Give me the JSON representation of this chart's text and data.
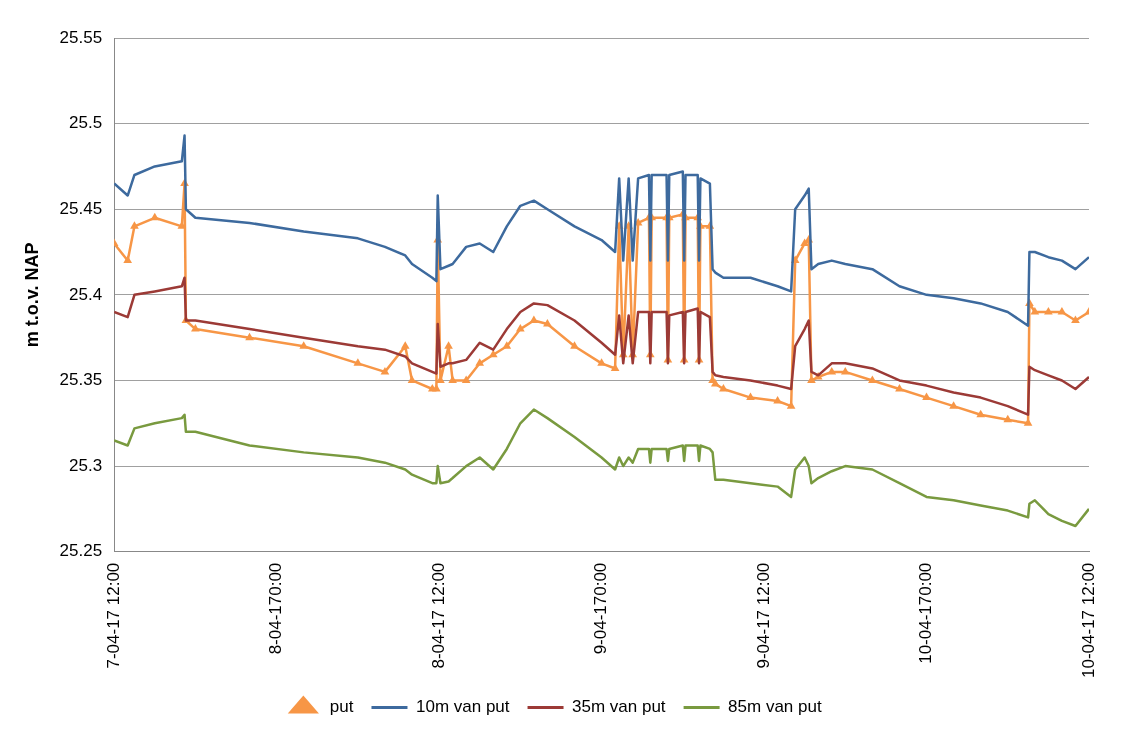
{
  "chart_data": {
    "type": "line",
    "ylabel": "m t.o.v. NAP",
    "x": [
      "--04-07T12:00",
      "--04-07T13:00",
      "--04-07T13:30",
      "--04-07T15:00",
      "--04-07T17:00",
      "--04-07T17:12",
      "--04-07T17:18",
      "--04-07T18:00",
      "--04-07T22:00",
      "--04-08T02:00",
      "--04-08T06:00",
      "--04-08T08:00",
      "--04-08T09:30",
      "--04-08T10:00",
      "--04-08T11:30",
      "--04-08T11:48",
      "--04-08T11:54",
      "--04-08T12:06",
      "--04-08T12:42",
      "--04-08T13:00",
      "--04-08T14:00",
      "--04-08T15:00",
      "--04-08T16:00",
      "--04-08T17:00",
      "--04-08T18:00",
      "--04-08T19:00",
      "--04-08T20:00",
      "--04-08T22:00",
      "--04-09T00:00",
      "--04-09T01:00",
      "--04-09T01:18",
      "--04-09T01:36",
      "--04-09T02:00",
      "--04-09T02:18",
      "--04-09T02:42",
      "--04-09T03:30",
      "--04-09T03:36",
      "--04-09T03:42",
      "--04-09T04:48",
      "--04-09T04:54",
      "--04-09T05:00",
      "--04-09T06:00",
      "--04-09T06:06",
      "--04-09T06:12",
      "--04-09T07:06",
      "--04-09T07:12",
      "--04-09T07:18",
      "--04-09T08:00",
      "--04-09T08:12",
      "--04-09T08:24",
      "--04-09T09:00",
      "--04-09T11:00",
      "--04-09T13:00",
      "--04-09T14:00",
      "--04-09T14:18",
      "--04-09T15:00",
      "--04-09T15:18",
      "--04-09T15:30",
      "--04-09T16:00",
      "--04-09T17:00",
      "--04-09T18:00",
      "--04-09T20:00",
      "--04-09T22:00",
      "--04-10T00:00",
      "--04-10T02:00",
      "--04-10T04:00",
      "--04-10T06:00",
      "--04-10T07:30",
      "--04-10T07:36",
      "--04-10T08:00",
      "--04-10T09:00",
      "--04-10T10:00",
      "--04-10T11:00",
      "--04-10T12:00"
    ],
    "series": [
      {
        "name": "put",
        "color": "#f79646",
        "marker": "triangle",
        "values": [
          25.43,
          25.42,
          25.44,
          25.445,
          25.44,
          25.465,
          25.385,
          25.38,
          25.375,
          25.37,
          25.36,
          25.355,
          25.37,
          25.35,
          25.345,
          25.345,
          25.432,
          25.35,
          25.37,
          25.35,
          25.35,
          25.36,
          25.365,
          25.37,
          25.38,
          25.385,
          25.383,
          25.37,
          25.36,
          25.357,
          25.44,
          25.365,
          25.44,
          25.365,
          25.442,
          25.445,
          25.365,
          25.445,
          25.445,
          25.362,
          25.445,
          25.447,
          25.362,
          25.445,
          25.445,
          25.362,
          25.44,
          25.44,
          25.35,
          25.348,
          25.345,
          25.34,
          25.338,
          25.335,
          25.42,
          25.43,
          25.432,
          25.35,
          25.352,
          25.355,
          25.355,
          25.35,
          25.345,
          25.34,
          25.335,
          25.33,
          25.327,
          25.325,
          25.395,
          25.39,
          25.39,
          25.39,
          25.385,
          25.39
        ]
      },
      {
        "name": "10m van put",
        "color": "#3d6a9e",
        "marker": "none",
        "values": [
          25.465,
          25.458,
          25.47,
          25.475,
          25.478,
          25.493,
          25.45,
          25.445,
          25.442,
          25.437,
          25.433,
          25.428,
          25.423,
          25.418,
          25.41,
          25.408,
          25.458,
          25.415,
          25.417,
          25.418,
          25.428,
          25.43,
          25.425,
          25.44,
          25.452,
          25.455,
          25.45,
          25.44,
          25.432,
          25.425,
          25.468,
          25.42,
          25.468,
          25.42,
          25.468,
          25.47,
          25.42,
          25.47,
          25.47,
          25.42,
          25.47,
          25.472,
          25.42,
          25.47,
          25.47,
          25.42,
          25.468,
          25.465,
          25.415,
          25.413,
          25.41,
          25.41,
          25.405,
          25.402,
          25.45,
          25.458,
          25.462,
          25.415,
          25.418,
          25.42,
          25.418,
          25.415,
          25.405,
          25.4,
          25.398,
          25.395,
          25.39,
          25.382,
          25.425,
          25.425,
          25.422,
          25.42,
          25.415,
          25.422
        ]
      },
      {
        "name": "35m van put",
        "color": "#9c3a36",
        "marker": "none",
        "values": [
          25.39,
          25.387,
          25.4,
          25.402,
          25.405,
          25.41,
          25.385,
          25.385,
          25.38,
          25.375,
          25.37,
          25.368,
          25.364,
          25.36,
          25.355,
          25.354,
          25.383,
          25.358,
          25.36,
          25.36,
          25.362,
          25.372,
          25.368,
          25.38,
          25.39,
          25.395,
          25.394,
          25.385,
          25.372,
          25.365,
          25.388,
          25.36,
          25.388,
          25.36,
          25.39,
          25.39,
          25.36,
          25.39,
          25.39,
          25.36,
          25.388,
          25.39,
          25.36,
          25.39,
          25.392,
          25.36,
          25.39,
          25.387,
          25.355,
          25.353,
          25.352,
          25.35,
          25.347,
          25.345,
          25.37,
          25.38,
          25.385,
          25.355,
          25.353,
          25.36,
          25.36,
          25.357,
          25.35,
          25.347,
          25.343,
          25.34,
          25.335,
          25.33,
          25.358,
          25.356,
          25.353,
          25.35,
          25.345,
          25.352
        ]
      },
      {
        "name": "85m van put",
        "color": "#799a3f",
        "marker": "none",
        "values": [
          25.315,
          25.312,
          25.322,
          25.325,
          25.328,
          25.33,
          25.32,
          25.32,
          25.312,
          25.308,
          25.305,
          25.302,
          25.298,
          25.295,
          25.29,
          25.29,
          25.3,
          25.29,
          25.291,
          25.293,
          25.3,
          25.305,
          25.298,
          25.31,
          25.325,
          25.333,
          25.328,
          25.317,
          25.305,
          25.298,
          25.305,
          25.3,
          25.305,
          25.302,
          25.31,
          25.31,
          25.302,
          25.31,
          25.31,
          25.303,
          25.31,
          25.312,
          25.303,
          25.312,
          25.312,
          25.303,
          25.312,
          25.31,
          25.308,
          25.292,
          25.292,
          25.29,
          25.288,
          25.282,
          25.298,
          25.305,
          25.3,
          25.29,
          25.293,
          25.297,
          25.3,
          25.298,
          25.29,
          25.282,
          25.28,
          25.277,
          25.274,
          25.27,
          25.278,
          25.28,
          25.272,
          25.268,
          25.265,
          25.275
        ]
      }
    ],
    "xlim": [
      "--04-07T12:00",
      "--04-10T12:00"
    ],
    "xticks": [
      {
        "value": "--04-07T12:00",
        "label": "7-04-17 12:00"
      },
      {
        "value": "--04-08T00:00",
        "label": "8-04-170:00"
      },
      {
        "value": "--04-08T12:00",
        "label": "8-04-17 12:00"
      },
      {
        "value": "--04-09T00:00",
        "label": "9-04-170:00"
      },
      {
        "value": "--04-09T12:00",
        "label": "9-04-17 12:00"
      },
      {
        "value": "--04-10T00:00",
        "label": "10-04-170:00"
      },
      {
        "value": "--04-10T12:00",
        "label": "10-04-17 12:00"
      }
    ],
    "ylim": [
      25.25,
      25.55
    ],
    "yticks": [
      25.25,
      25.3,
      25.35,
      25.4,
      25.45,
      25.5,
      25.55
    ],
    "grid": "y",
    "legend": "bottom",
    "line_style": "solid"
  }
}
